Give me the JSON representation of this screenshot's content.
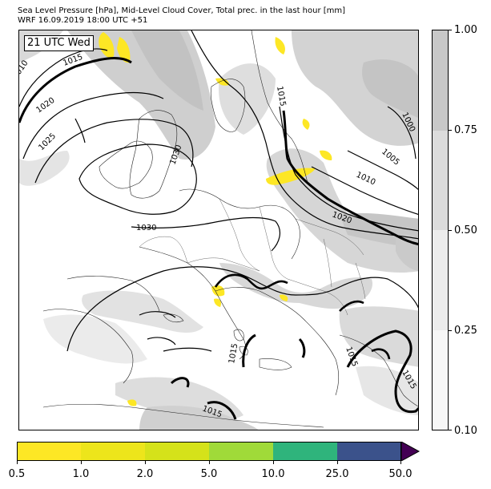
{
  "title": {
    "line1": "Sea Level Pressure [hPa], Mid-Level Cloud Cover, Total prec. in the last hour [mm]",
    "line2": "WRF 16.09.2019 18:00 UTC +51"
  },
  "time_label": "21 UTC Wed",
  "isobar_labels": [
    "1010",
    "1015",
    "1020",
    "1025",
    "1030",
    "1030",
    "1015",
    "1000",
    "1005",
    "1010",
    "1020",
    "1015",
    "1015",
    "1015",
    "1015"
  ],
  "cloud_colorbar": {
    "ticks": [
      "1.00",
      "0.75",
      "0.50",
      "0.25",
      "0.10"
    ],
    "levels": [
      0.1,
      0.25,
      0.5,
      0.75,
      1.0
    ],
    "colors": [
      "#f7f7f7",
      "#ececec",
      "#dcdcdc",
      "#c8c8c8"
    ]
  },
  "precip_colorbar": {
    "ticks": [
      "0.5",
      "1.0",
      "2.0",
      "5.0",
      "10.0",
      "25.0",
      "50.0"
    ],
    "levels": [
      0.5,
      1.0,
      2.0,
      5.0,
      10.0,
      25.0,
      50.0
    ],
    "colors": [
      "#fde725",
      "#ede51b",
      "#d5e21a",
      "#a0da39",
      "#2fb47c",
      "#3b528b",
      "#440154"
    ]
  },
  "colors": {
    "isobar": "#000000",
    "land": "#ffffff",
    "cloud_light": "#dcdcdc",
    "cloud_dark": "#c8c8c8",
    "precip": "#fde725"
  }
}
